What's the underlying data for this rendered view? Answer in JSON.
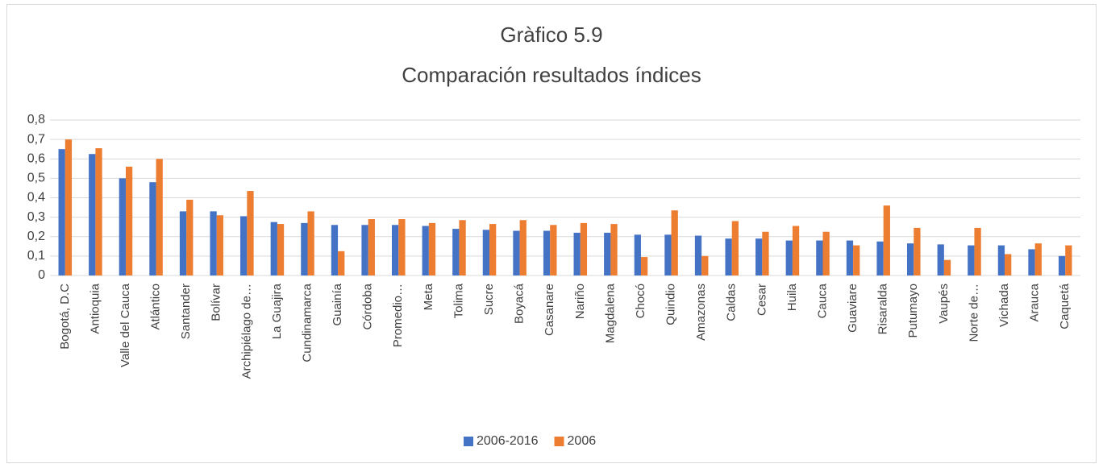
{
  "chart_data": {
    "type": "bar",
    "title": [
      "Gràfico 5.9",
      "Comparación resultados índices"
    ],
    "categories": [
      "Bogotá, D.C",
      "Antioquia",
      "Valle del Cauca",
      "Atlántico",
      "Santander",
      "Bolívar",
      "Archipiélago de…",
      "La Guajira",
      "Cundinamarca",
      "Guainía",
      "Córdoba",
      "Promedio…",
      "Meta",
      "Tolima",
      "Sucre",
      "Boyacá",
      "Casanare",
      "Nariño",
      "Magdalena",
      "Chocó",
      "Quindio",
      "Amazonas",
      "Caldas",
      "Cesar",
      "Huila",
      "Cauca",
      "Guaviare",
      "Risaralda",
      "Putumayo",
      "Vaupés",
      "Norte de…",
      "Vichada",
      "Arauca",
      "Caquetá"
    ],
    "series": [
      {
        "name": "2006-2016",
        "color": "#4472c4",
        "values": [
          0.65,
          0.625,
          0.5,
          0.48,
          0.33,
          0.33,
          0.305,
          0.275,
          0.27,
          0.26,
          0.26,
          0.26,
          0.255,
          0.24,
          0.235,
          0.23,
          0.23,
          0.22,
          0.22,
          0.21,
          0.21,
          0.205,
          0.19,
          0.19,
          0.18,
          0.18,
          0.18,
          0.175,
          0.165,
          0.16,
          0.155,
          0.155,
          0.135,
          0.1
        ]
      },
      {
        "name": "2006",
        "color": "#ed7d31",
        "values": [
          0.7,
          0.655,
          0.56,
          0.6,
          0.39,
          0.31,
          0.435,
          0.265,
          0.33,
          0.125,
          0.29,
          0.29,
          0.27,
          0.285,
          0.265,
          0.285,
          0.26,
          0.27,
          0.265,
          0.095,
          0.335,
          0.1,
          0.28,
          0.225,
          0.255,
          0.225,
          0.155,
          0.36,
          0.245,
          0.08,
          0.245,
          0.11,
          0.165,
          0.155
        ]
      }
    ],
    "ylim": [
      0,
      0.8
    ],
    "yticks": [
      0,
      {
        "value": 0.1,
        "label": "0,1"
      },
      {
        "value": 0.2,
        "label": "0,2"
      },
      {
        "value": 0.3,
        "label": "0,3"
      },
      {
        "value": 0.4,
        "label": "0,4"
      },
      {
        "value": 0.5,
        "label": "0,5"
      },
      {
        "value": 0.6,
        "label": "0,6"
      },
      {
        "value": 0.7,
        "label": "0,7"
      },
      {
        "value": 0.8,
        "label": "0,8"
      }
    ],
    "grid": true,
    "legend": "bottom"
  }
}
